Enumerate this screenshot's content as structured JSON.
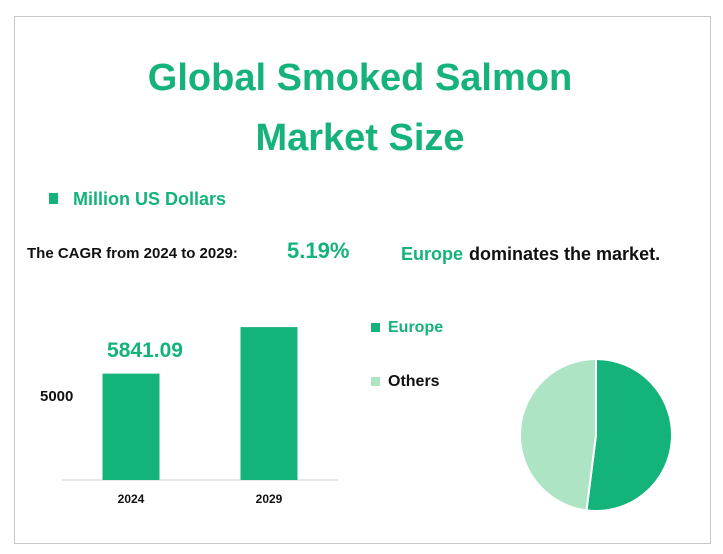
{
  "chart_data": [
    {
      "type": "bar",
      "title": "Global Smoked Salmon Market Size",
      "categories": [
        "2024",
        "2029"
      ],
      "series": [
        {
          "name": "Million US Dollars",
          "color": "#13b37a",
          "values": [
            5841.09,
            7521
          ],
          "value_labels": [
            "5841.09",
            null
          ]
        }
      ],
      "ylim": [
        2000,
        8500
      ],
      "yticks": [
        5000
      ]
    },
    {
      "type": "pie",
      "categories": [
        "Europe",
        "Others"
      ],
      "values": [
        52,
        48
      ],
      "colors": [
        "#13b37a",
        "#ade5c4"
      ]
    }
  ],
  "cagr": {
    "label": "The CAGR from 2024 to 2029:",
    "value": "5.19%"
  },
  "note": {
    "highlight": "Europe",
    "text": "dominates the market."
  }
}
